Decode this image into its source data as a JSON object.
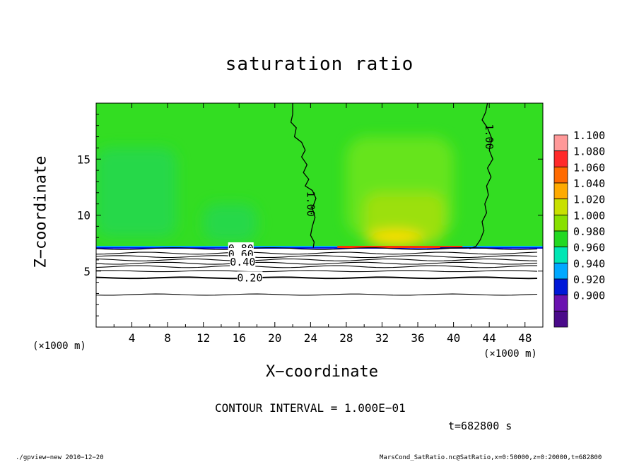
{
  "chart_data": {
    "type": "contour",
    "title": "saturation ratio",
    "xlabel": "X−coordinate",
    "ylabel": "Z−coordinate",
    "x_unit_label": "(×1000 m)",
    "z_unit_label": "(×1000 m)",
    "xlim": [
      0,
      50
    ],
    "ylim": [
      0,
      20
    ],
    "x_ticks": [
      4,
      8,
      12,
      16,
      20,
      24,
      28,
      32,
      36,
      40,
      44,
      48
    ],
    "y_ticks": [
      5,
      10,
      15
    ],
    "colorbar": {
      "levels": [
        1.1,
        1.08,
        1.06,
        1.04,
        1.02,
        1.0,
        0.98,
        0.96,
        0.94,
        0.92,
        0.9
      ],
      "labels": [
        "1.100",
        "1.080",
        "1.060",
        "1.040",
        "1.020",
        "1.000",
        "0.980",
        "0.960",
        "0.940",
        "0.920",
        "0.900"
      ],
      "colors": [
        "#ff9999",
        "#ff2a2a",
        "#ff6a00",
        "#ffaa00",
        "#c8e000",
        "#88e000",
        "#22d822",
        "#00e6b4",
        "#00a8ff",
        "#0018d8",
        "#6a12b0",
        "#4a0a8a"
      ]
    },
    "contour_interval_text": "CONTOUR INTERVAL = 1.000E−01",
    "contour_labels": [
      {
        "text": "1.00",
        "x": 24.0,
        "z": 11.0
      },
      {
        "text": "1.00",
        "x": 44.0,
        "z": 17.0
      },
      {
        "text": "0.80",
        "x": 16.2,
        "z": 7.0
      },
      {
        "text": "0.60",
        "x": 16.2,
        "z": 6.5
      },
      {
        "text": "0.40",
        "x": 16.4,
        "z": 5.8
      },
      {
        "text": "0.20",
        "x": 17.2,
        "z": 4.4
      }
    ],
    "contour_lines_z": [
      7.0,
      6.6,
      6.3,
      6.0,
      5.7,
      5.4,
      5.0,
      4.4,
      2.9
    ],
    "cloud_top_z": 7.0
  },
  "text": {
    "time_label": "t=682800 s",
    "footer_left": "./gpview−new   2010−12−20",
    "footer_right": "MarsCond_SatRatio.nc@SatRatio,x=0:50000,z=0:20000,t=682800"
  }
}
